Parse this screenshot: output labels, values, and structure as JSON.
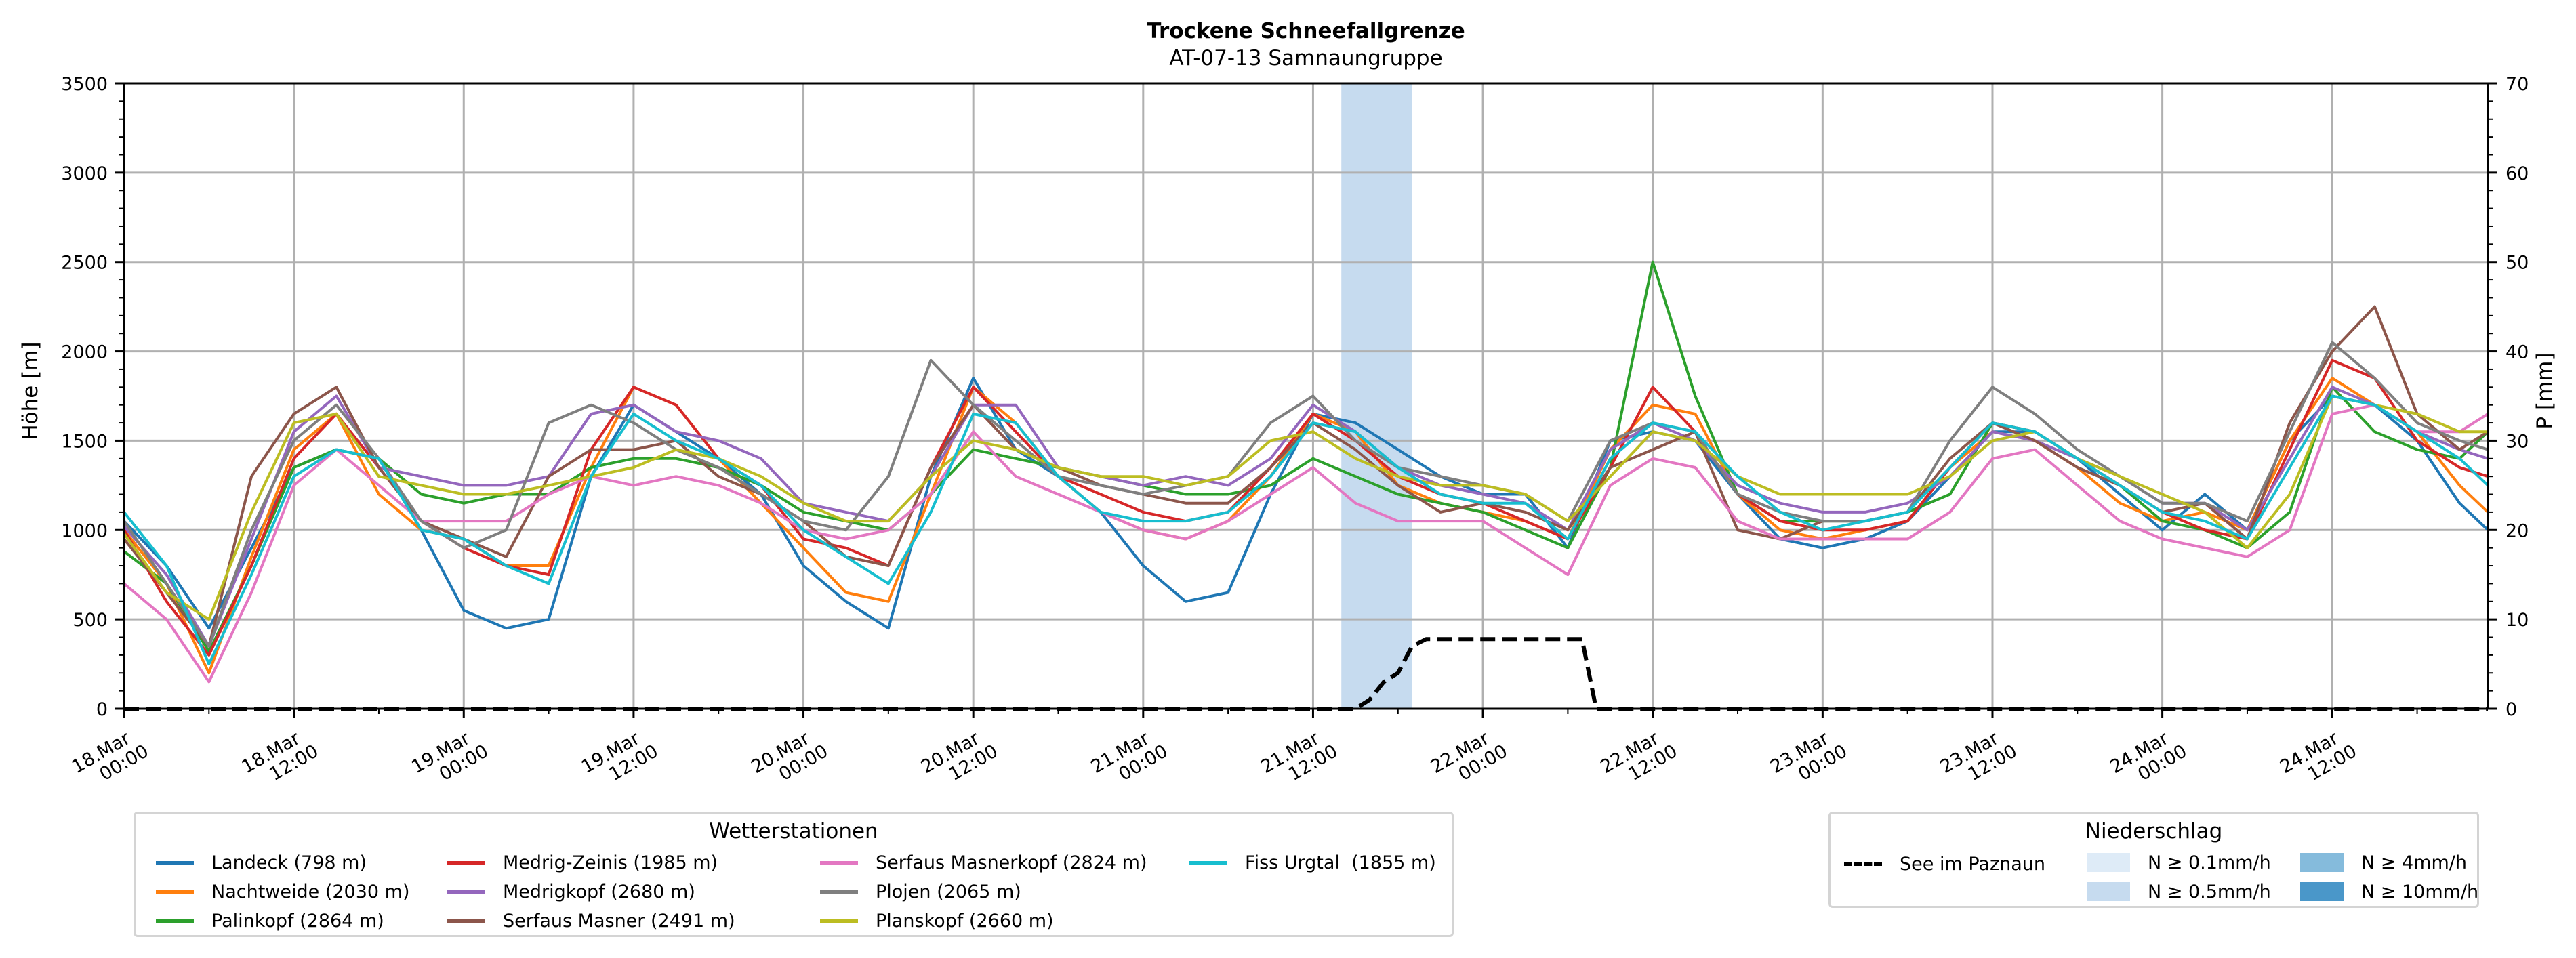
{
  "chart_data": {
    "type": "line",
    "title": "Trockene Schneefallgrenze",
    "subtitle": "AT-07-13 Samnaungruppe",
    "ylabel": "Höhe [m]",
    "y2label": "P [mm]",
    "ylim": [
      0,
      3500
    ],
    "y2lim": [
      0,
      70
    ],
    "yticks": [
      "0",
      "500",
      "1000",
      "1500",
      "2000",
      "2500",
      "3000",
      "3500"
    ],
    "y2ticks": [
      "0",
      "10",
      "20",
      "30",
      "40",
      "50",
      "60",
      "70"
    ],
    "grid": true,
    "x_unit": "hours since 18.Mar 00:00",
    "xlim": [
      0,
      167
    ],
    "xticks": [
      {
        "h": 0,
        "line1": "18.Mar",
        "line2": "00:00"
      },
      {
        "h": 12,
        "line1": "18.Mar",
        "line2": "12:00"
      },
      {
        "h": 24,
        "line1": "19.Mar",
        "line2": "00:00"
      },
      {
        "h": 36,
        "line1": "19.Mar",
        "line2": "12:00"
      },
      {
        "h": 48,
        "line1": "20.Mar",
        "line2": "00:00"
      },
      {
        "h": 60,
        "line1": "20.Mar",
        "line2": "12:00"
      },
      {
        "h": 72,
        "line1": "21.Mar",
        "line2": "00:00"
      },
      {
        "h": 84,
        "line1": "21.Mar",
        "line2": "12:00"
      },
      {
        "h": 96,
        "line1": "22.Mar",
        "line2": "00:00"
      },
      {
        "h": 108,
        "line1": "22.Mar",
        "line2": "12:00"
      },
      {
        "h": 120,
        "line1": "23.Mar",
        "line2": "00:00"
      },
      {
        "h": 132,
        "line1": "23.Mar",
        "line2": "12:00"
      },
      {
        "h": 144,
        "line1": "24.Mar",
        "line2": "00:00"
      },
      {
        "h": 156,
        "line1": "24.Mar",
        "line2": "12:00"
      }
    ],
    "x": [
      0,
      3,
      6,
      9,
      12,
      15,
      18,
      21,
      24,
      27,
      30,
      33,
      36,
      39,
      42,
      45,
      48,
      51,
      54,
      57,
      60,
      63,
      66,
      69,
      72,
      75,
      78,
      81,
      84,
      87,
      90,
      93,
      96,
      99,
      102,
      105,
      108,
      111,
      114,
      117,
      120,
      123,
      126,
      129,
      132,
      135,
      138,
      141,
      144,
      147,
      150,
      153,
      156,
      159,
      162,
      165,
      167
    ],
    "series": [
      {
        "name": "Landeck (798 m)",
        "color": "#1f77b4",
        "values": [
          1050,
          800,
          450,
          900,
          1350,
          1450,
          1400,
          1000,
          550,
          450,
          500,
          1300,
          1700,
          1550,
          1400,
          1200,
          800,
          600,
          450,
          1300,
          1850,
          1450,
          1300,
          1100,
          800,
          600,
          650,
          1200,
          1650,
          1600,
          1450,
          1300,
          1200,
          1200,
          900,
          1500,
          1550,
          1500,
          1200,
          950,
          900,
          950,
          1050,
          1300,
          1550,
          1550,
          1400,
          1200,
          1000,
          1200,
          1000,
          1500,
          1750,
          1700,
          1500,
          1150,
          1000
        ]
      },
      {
        "name": "Nachtweide (2030 m)",
        "color": "#ff7f0e",
        "values": [
          1000,
          700,
          200,
          850,
          1450,
          1650,
          1200,
          1000,
          950,
          800,
          800,
          1350,
          1800,
          1700,
          1400,
          1150,
          900,
          650,
          600,
          1200,
          1800,
          1600,
          1300,
          1100,
          1000,
          950,
          1050,
          1300,
          1650,
          1550,
          1250,
          1150,
          1100,
          1050,
          950,
          1450,
          1700,
          1650,
          1200,
          1000,
          950,
          1000,
          1050,
          1350,
          1550,
          1500,
          1350,
          1150,
          1050,
          1100,
          1000,
          1500,
          1850,
          1700,
          1550,
          1250,
          1100
        ]
      },
      {
        "name": "Palinkopf (2864 m)",
        "color": "#2ca02c",
        "values": [
          880,
          700,
          320,
          800,
          1350,
          1450,
          1400,
          1200,
          1150,
          1200,
          1200,
          1350,
          1400,
          1400,
          1350,
          1250,
          1100,
          1050,
          1000,
          1200,
          1450,
          1400,
          1350,
          1300,
          1250,
          1200,
          1200,
          1250,
          1400,
          1300,
          1200,
          1150,
          1100,
          1000,
          900,
          1350,
          2500,
          1750,
          1200,
          1050,
          1050,
          1050,
          1100,
          1200,
          1600,
          1550,
          1400,
          1250,
          1050,
          1000,
          900,
          1100,
          1800,
          1550,
          1450,
          1400,
          1550
        ]
      },
      {
        "name": "Medrig-Zeinis (1985 m)",
        "color": "#d62728",
        "values": [
          1000,
          600,
          300,
          800,
          1400,
          1650,
          1350,
          1050,
          900,
          800,
          750,
          1450,
          1800,
          1700,
          1400,
          1250,
          950,
          900,
          800,
          1350,
          1800,
          1550,
          1300,
          1200,
          1100,
          1050,
          1100,
          1350,
          1650,
          1500,
          1300,
          1200,
          1150,
          1050,
          950,
          1350,
          1800,
          1550,
          1200,
          1050,
          1000,
          1000,
          1050,
          1350,
          1600,
          1550,
          1400,
          1250,
          1100,
          1000,
          950,
          1450,
          1950,
          1850,
          1500,
          1350,
          1300
        ]
      },
      {
        "name": "Medrigkopf (2680 m)",
        "color": "#9467bd",
        "values": [
          1020,
          750,
          350,
          950,
          1550,
          1750,
          1350,
          1300,
          1250,
          1250,
          1300,
          1650,
          1700,
          1550,
          1500,
          1400,
          1150,
          1100,
          1050,
          1300,
          1700,
          1700,
          1350,
          1300,
          1250,
          1300,
          1250,
          1400,
          1700,
          1550,
          1350,
          1250,
          1200,
          1150,
          1000,
          1450,
          1600,
          1500,
          1250,
          1150,
          1100,
          1100,
          1150,
          1300,
          1550,
          1500,
          1400,
          1300,
          1150,
          1150,
          1000,
          1400,
          1800,
          1700,
          1550,
          1450,
          1400
        ]
      },
      {
        "name": "Serfaus Masner (2491 m)",
        "color": "#8c564b",
        "values": [
          950,
          650,
          350,
          1300,
          1650,
          1800,
          1350,
          1050,
          950,
          850,
          1300,
          1450,
          1450,
          1500,
          1300,
          1200,
          1050,
          850,
          800,
          1350,
          1700,
          1450,
          1350,
          1250,
          1200,
          1150,
          1150,
          1350,
          1600,
          1450,
          1250,
          1100,
          1150,
          1100,
          1000,
          1350,
          1450,
          1550,
          1000,
          950,
          1050,
          1050,
          1100,
          1400,
          1600,
          1500,
          1350,
          1250,
          1100,
          1150,
          950,
          1600,
          2000,
          2250,
          1650,
          1450,
          1550
        ]
      },
      {
        "name": "Serfaus Masnerkopf (2824 m)",
        "color": "#e377c2",
        "values": [
          700,
          500,
          150,
          650,
          1250,
          1450,
          1250,
          1050,
          1050,
          1050,
          1200,
          1300,
          1250,
          1300,
          1250,
          1150,
          1000,
          950,
          1000,
          1200,
          1550,
          1300,
          1200,
          1100,
          1000,
          950,
          1050,
          1200,
          1350,
          1150,
          1050,
          1050,
          1050,
          900,
          750,
          1250,
          1400,
          1350,
          1050,
          950,
          950,
          950,
          950,
          1100,
          1400,
          1450,
          1250,
          1050,
          950,
          900,
          850,
          1000,
          1650,
          1700,
          1550,
          1550,
          1650
        ]
      },
      {
        "name": "Plojen (2065 m)",
        "color": "#7f7f7f",
        "values": [
          1050,
          700,
          350,
          1000,
          1500,
          1700,
          1400,
          1050,
          900,
          1000,
          1600,
          1700,
          1600,
          1450,
          1350,
          1200,
          1050,
          1000,
          1300,
          1950,
          1700,
          1500,
          1300,
          1250,
          1200,
          1250,
          1300,
          1600,
          1750,
          1500,
          1350,
          1300,
          1250,
          1200,
          1050,
          1500,
          1600,
          1550,
          1200,
          1100,
          1050,
          1050,
          1100,
          1500,
          1800,
          1650,
          1450,
          1300,
          1150,
          1150,
          1050,
          1550,
          2050,
          1850,
          1600,
          1500,
          1450
        ]
      },
      {
        "name": "Planskopf (2660 m)",
        "color": "#bcbd22",
        "values": [
          980,
          650,
          500,
          1100,
          1600,
          1650,
          1300,
          1250,
          1200,
          1200,
          1250,
          1300,
          1350,
          1450,
          1400,
          1300,
          1150,
          1050,
          1050,
          1300,
          1500,
          1450,
          1350,
          1300,
          1300,
          1250,
          1300,
          1500,
          1550,
          1400,
          1300,
          1250,
          1250,
          1200,
          1050,
          1300,
          1550,
          1500,
          1300,
          1200,
          1200,
          1200,
          1200,
          1300,
          1500,
          1550,
          1400,
          1300,
          1200,
          1100,
          900,
          1200,
          1750,
          1700,
          1650,
          1550,
          1550
        ]
      },
      {
        "name": "Fiss Urgtal  (1855 m)",
        "color": "#17becf",
        "values": [
          1100,
          800,
          250,
          750,
          1300,
          1450,
          1400,
          1000,
          950,
          800,
          700,
          1300,
          1650,
          1500,
          1400,
          1250,
          1000,
          850,
          700,
          1100,
          1650,
          1600,
          1300,
          1100,
          1050,
          1050,
          1100,
          1300,
          1600,
          1550,
          1350,
          1200,
          1150,
          1150,
          950,
          1400,
          1600,
          1550,
          1300,
          1100,
          1000,
          1050,
          1100,
          1350,
          1600,
          1550,
          1400,
          1250,
          1100,
          1050,
          950,
          1350,
          1750,
          1700,
          1550,
          1400,
          1250
        ]
      }
    ],
    "lake_series": {
      "name": "See im Paznaun",
      "color": "#000000",
      "style": "dashed",
      "axis": "right",
      "x": [
        0,
        87,
        88,
        89,
        90,
        91,
        92,
        96,
        103,
        104,
        167
      ],
      "values": [
        0,
        0,
        1,
        3,
        4,
        7,
        7.8,
        7.8,
        7.8,
        0,
        0
      ]
    },
    "precipitation_bands": [
      {
        "from_h": 86,
        "to_h": 91,
        "level": "N ≥ 0.5mm/h",
        "color": "#c6dbef"
      }
    ],
    "legend_stations": {
      "title": "Wetterstationen",
      "placement": "bottom-left"
    },
    "legend_precip": {
      "title": "Niederschlag",
      "placement": "bottom-right",
      "lake_label": "See im Paznaun",
      "items": [
        {
          "label": "N ≥ 0.1mm/h",
          "color": "#deebf7"
        },
        {
          "label": "N ≥ 0.5mm/h",
          "color": "#c6dbef"
        },
        {
          "label": "N ≥ 4mm/h",
          "color": "#85bbdc"
        },
        {
          "label": "N ≥ 10mm/h",
          "color": "#4a97c9"
        }
      ]
    }
  }
}
